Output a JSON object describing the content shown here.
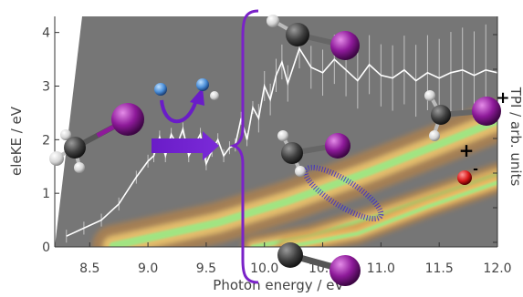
{
  "chart_data": {
    "type": "heatmap",
    "xlabel": "Photon energy / eV",
    "ylabel": "eleKE / eV",
    "y2label": "TPI / arb. units",
    "xlim": [
      8.2,
      12.0
    ],
    "ylim": [
      0,
      4.3
    ],
    "x_ticks": [
      "8.5",
      "9.0",
      "9.5",
      "10.0",
      "10.5",
      "11.0",
      "11.5",
      "12.0"
    ],
    "y_ticks": [
      "0",
      "1",
      "2",
      "3",
      "4"
    ],
    "bands": [
      {
        "x": [
          8.7,
          9.6,
          10.2,
          10.9,
          11.6,
          12.0
        ],
        "y": [
          0.02,
          0.45,
          0.85,
          1.4,
          2.0,
          2.35
        ],
        "width": 0.35
      },
      {
        "x": [
          9.9,
          10.4,
          11.0,
          11.6,
          12.0
        ],
        "y": [
          0.0,
          0.2,
          0.6,
          1.05,
          1.35
        ],
        "width": 0.2
      },
      {
        "x": [
          10.2,
          10.8,
          11.4,
          12.0
        ],
        "y": [
          0.0,
          0.25,
          0.75,
          1.2
        ],
        "width": 0.18
      }
    ],
    "tpi_series": {
      "x": [
        8.3,
        8.45,
        8.6,
        8.75,
        8.9,
        9.0,
        9.05,
        9.1,
        9.15,
        9.2,
        9.25,
        9.3,
        9.35,
        9.4,
        9.45,
        9.5,
        9.55,
        9.6,
        9.65,
        9.7,
        9.75,
        9.8,
        9.85,
        9.9,
        9.95,
        10.0,
        10.05,
        10.1,
        10.15,
        10.2,
        10.3,
        10.4,
        10.5,
        10.6,
        10.7,
        10.8,
        10.9,
        11.0,
        11.1,
        11.2,
        11.3,
        11.4,
        11.5,
        11.6,
        11.7,
        11.8,
        11.9,
        12.0
      ],
      "y": [
        0.2,
        0.35,
        0.5,
        0.8,
        1.3,
        1.6,
        1.7,
        2.05,
        1.7,
        2.1,
        1.9,
        2.2,
        1.7,
        1.9,
        2.1,
        1.55,
        1.8,
        2.0,
        1.7,
        1.85,
        1.9,
        2.4,
        2.0,
        2.6,
        2.4,
        3.0,
        2.75,
        3.2,
        3.45,
        3.05,
        3.7,
        3.35,
        3.25,
        3.5,
        3.3,
        3.1,
        3.4,
        3.2,
        3.15,
        3.3,
        3.1,
        3.25,
        3.15,
        3.25,
        3.3,
        3.2,
        3.3,
        3.25
      ]
    },
    "annotations": {
      "plus_sign": "+",
      "minus_sign": "-"
    }
  },
  "colors": {
    "background": "#767676",
    "band_outer": "#c9863a",
    "band_mid": "#ffd977",
    "band_core": "#8cf28a",
    "tpi_line": "#ffffff",
    "arrow": "#6a1cc8",
    "iodine": "#8e1a9a",
    "carbon": "#4a4a4a",
    "hydrogen": "#e8e8e8",
    "nitrogen": "#4a8ed8",
    "electron": "#d81a1a"
  }
}
